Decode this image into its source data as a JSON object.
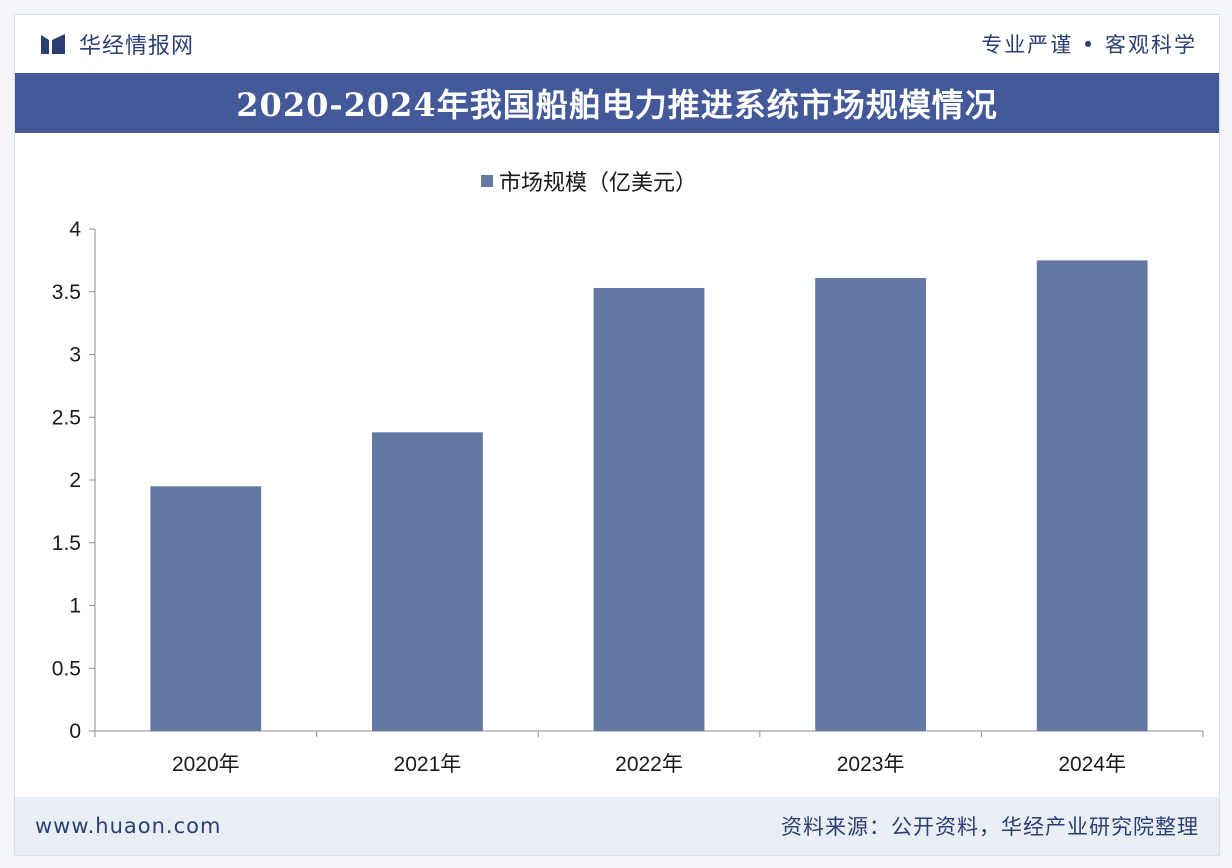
{
  "header": {
    "brand": "华经情报网",
    "slogan": "专业严谨 • 客观科学"
  },
  "chart_data": {
    "type": "bar",
    "title": "2020-2024年我国船舶电力推进系统市场规模情况",
    "categories": [
      "2020年",
      "2021年",
      "2022年",
      "2023年",
      "2024年"
    ],
    "series": [
      {
        "name": "市场规模（亿美元）",
        "values": [
          1.95,
          2.38,
          3.53,
          3.61,
          3.75
        ]
      }
    ],
    "ylim": [
      0,
      4
    ],
    "yticks": [
      "0",
      "0.5",
      "1",
      "1.5",
      "2",
      "2.5",
      "3",
      "3.5",
      "4"
    ],
    "legend_position": "top-center",
    "grid": false,
    "colors": {
      "bar": "#6379a3",
      "axis": "#8c8c8c"
    }
  },
  "footer": {
    "site": "www.huaon.com",
    "source": "资料来源：公开资料，华经产业研究院整理"
  },
  "theme": {
    "accent": "#44599a",
    "brand_text": "#2b3f72"
  }
}
